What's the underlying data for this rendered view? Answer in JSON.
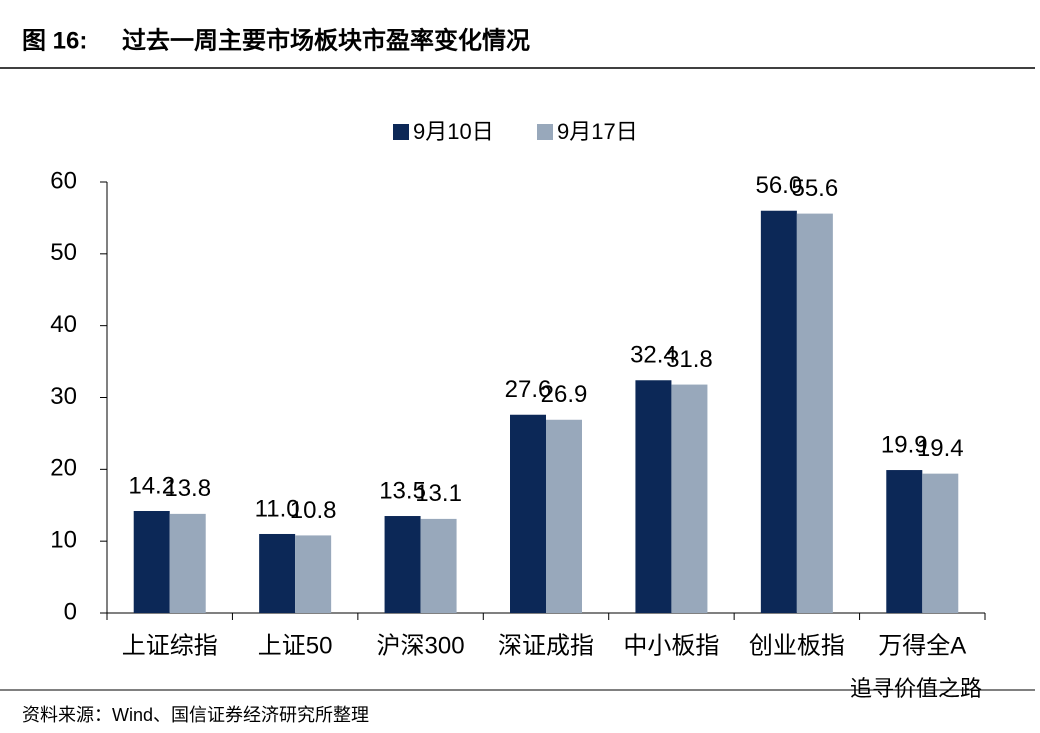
{
  "chart_data": {
    "type": "bar",
    "figure_label": "图 16:",
    "title": "过去一周主要市场板块市盈率变化情况",
    "source": "资料来源：Wind、国信证券经济研究所整理",
    "watermark": "追寻价值之路",
    "categories": [
      "上证综指",
      "上证50",
      "沪深300",
      "深证成指",
      "中小板指",
      "创业板指",
      "万得全A"
    ],
    "series": [
      {
        "name": "9月10日",
        "color": "#0c2857",
        "values": [
          14.2,
          11.0,
          13.5,
          27.6,
          32.4,
          56.0,
          19.9
        ],
        "value_labels": [
          "14.2",
          "11.0",
          "13.5",
          "27.6",
          "32.4",
          "56.0",
          "19.9"
        ]
      },
      {
        "name": "9月17日",
        "color": "#98a8bb",
        "values": [
          13.8,
          10.8,
          13.1,
          26.9,
          31.8,
          55.6,
          19.4
        ],
        "value_labels": [
          "13.8",
          "10.8",
          "13.1",
          "26.9",
          "31.8",
          "55.6",
          "19.4"
        ]
      }
    ],
    "ylim": [
      0,
      60
    ],
    "yticks": [
      0,
      10,
      20,
      30,
      40,
      50,
      60
    ],
    "grid": false,
    "legend": "top"
  }
}
